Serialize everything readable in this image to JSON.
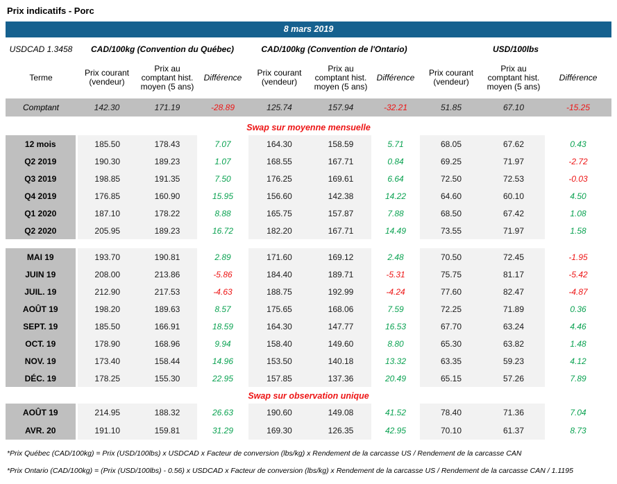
{
  "title": "Prix indicatifs - Porc",
  "banner": {
    "date": "8 mars 2019"
  },
  "usdcad_label": "USDCAD 1.3458",
  "groups": [
    "CAD/100kg (Convention du Québec)",
    "CAD/100kg (Convention de l'Ontario)",
    "USD/100lbs"
  ],
  "column_headers": {
    "terme": "Terme",
    "prix_courant": "Prix courant (vendeur)",
    "prix_comptant": "Prix au comptant hist. moyen (5 ans)",
    "difference": "Différence"
  },
  "sections": [
    {
      "type": "spot",
      "header": "",
      "rows": [
        {
          "label": "Comptant",
          "values": [
            "142.30",
            "171.19",
            "-28.89",
            "125.74",
            "157.94",
            "-32.21",
            "51.85",
            "67.10",
            "-15.25"
          ]
        }
      ]
    },
    {
      "type": "quarterly",
      "header": "Swap sur moyenne mensuelle",
      "rows": [
        {
          "label": "12 mois",
          "values": [
            "185.50",
            "178.43",
            "7.07",
            "164.30",
            "158.59",
            "5.71",
            "68.05",
            "67.62",
            "0.43"
          ]
        },
        {
          "label": "Q2 2019",
          "values": [
            "190.30",
            "189.23",
            "1.07",
            "168.55",
            "167.71",
            "0.84",
            "69.25",
            "71.97",
            "-2.72"
          ]
        },
        {
          "label": "Q3 2019",
          "values": [
            "198.85",
            "191.35",
            "7.50",
            "176.25",
            "169.61",
            "6.64",
            "72.50",
            "72.53",
            "-0.03"
          ]
        },
        {
          "label": "Q4 2019",
          "values": [
            "176.85",
            "160.90",
            "15.95",
            "156.60",
            "142.38",
            "14.22",
            "64.60",
            "60.10",
            "4.50"
          ]
        },
        {
          "label": "Q1 2020",
          "values": [
            "187.10",
            "178.22",
            "8.88",
            "165.75",
            "157.87",
            "7.88",
            "68.50",
            "67.42",
            "1.08"
          ]
        },
        {
          "label": "Q2 2020",
          "values": [
            "205.95",
            "189.23",
            "16.72",
            "182.20",
            "167.71",
            "14.49",
            "73.55",
            "71.97",
            "1.58"
          ]
        }
      ]
    },
    {
      "type": "monthly",
      "header": "",
      "rows": [
        {
          "label": "MAI 19",
          "values": [
            "193.70",
            "190.81",
            "2.89",
            "171.60",
            "169.12",
            "2.48",
            "70.50",
            "72.45",
            "-1.95"
          ]
        },
        {
          "label": "JUIN 19",
          "values": [
            "208.00",
            "213.86",
            "-5.86",
            "184.40",
            "189.71",
            "-5.31",
            "75.75",
            "81.17",
            "-5.42"
          ]
        },
        {
          "label": "JUIL. 19",
          "values": [
            "212.90",
            "217.53",
            "-4.63",
            "188.75",
            "192.99",
            "-4.24",
            "77.60",
            "82.47",
            "-4.87"
          ]
        },
        {
          "label": "AOÛT 19",
          "values": [
            "198.20",
            "189.63",
            "8.57",
            "175.65",
            "168.06",
            "7.59",
            "72.25",
            "71.89",
            "0.36"
          ]
        },
        {
          "label": "SEPT. 19",
          "values": [
            "185.50",
            "166.91",
            "18.59",
            "164.30",
            "147.77",
            "16.53",
            "67.70",
            "63.24",
            "4.46"
          ]
        },
        {
          "label": "OCT. 19",
          "values": [
            "178.90",
            "168.96",
            "9.94",
            "158.40",
            "149.60",
            "8.80",
            "65.30",
            "63.82",
            "1.48"
          ]
        },
        {
          "label": "NOV. 19",
          "values": [
            "173.40",
            "158.44",
            "14.96",
            "153.50",
            "140.18",
            "13.32",
            "63.35",
            "59.23",
            "4.12"
          ]
        },
        {
          "label": "DÉC. 19",
          "values": [
            "178.25",
            "155.30",
            "22.95",
            "157.85",
            "137.36",
            "20.49",
            "65.15",
            "57.26",
            "7.89"
          ]
        }
      ]
    },
    {
      "type": "unique",
      "header": "Swap sur observation unique",
      "rows": [
        {
          "label": "AOÛT 19",
          "values": [
            "214.95",
            "188.32",
            "26.63",
            "190.60",
            "149.08",
            "41.52",
            "78.40",
            "71.36",
            "7.04"
          ]
        },
        {
          "label": "AVR. 20",
          "values": [
            "191.10",
            "159.81",
            "31.29",
            "169.30",
            "126.35",
            "42.95",
            "70.10",
            "61.37",
            "8.73"
          ]
        }
      ]
    }
  ],
  "footnotes": [
    "*Prix Québec (CAD/100kg) = Prix (USD/100lbs) x USDCAD x Facteur de conversion (lbs/kg) x Rendement de la carcasse US / Rendement de la carcasse CAN",
    "*Prix Ontario (CAD/100kg) = (Prix (USD/100lbs) - 0.56) x USDCAD x Facteur de conversion (lbs/kg) x Rendement de la carcasse US / Rendement de la carcasse CAN / 1.1195"
  ],
  "colors": {
    "header_blue": "#16618f",
    "positive_green": "#0aa251",
    "negative_red": "#ed1515",
    "term_gray": "#bfbfbf",
    "cell_gray": "#f2f2f2"
  }
}
